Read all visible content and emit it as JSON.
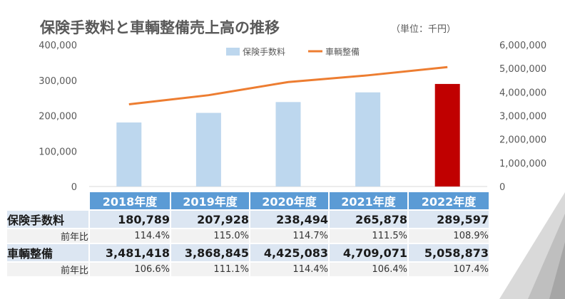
{
  "chart_data": {
    "type": "bar+line",
    "title": "保険手数料と車輌整備売上高の推移",
    "unit": "（単位：千円）",
    "categories": [
      "2018年度",
      "2019年度",
      "2020年度",
      "2021年度",
      "2022年度"
    ],
    "series": [
      {
        "name": "保険手数料",
        "type": "bar",
        "axis": "left",
        "values": [
          180789,
          207928,
          238494,
          265878,
          289597
        ],
        "color": "#bdd7ee",
        "highlight_last_color": "#c00000"
      },
      {
        "name": "車輌整備",
        "type": "line",
        "axis": "right",
        "values": [
          3481418,
          3868845,
          4425083,
          4709071,
          5058873
        ],
        "color": "#ed7d31"
      }
    ],
    "y_left": {
      "min": 0,
      "max": 400000,
      "ticks": [
        "0",
        "100,000",
        "200,000",
        "300,000",
        "400,000"
      ]
    },
    "y_right": {
      "min": 0,
      "max": 6000000,
      "ticks": [
        "0",
        "1,000,000",
        "2,000,000",
        "3,000,000",
        "4,000,000",
        "5,000,000",
        "6,000,000"
      ]
    },
    "legend_position": "top-center",
    "grid": false
  },
  "table": {
    "headers": [
      "2018年度",
      "2019年度",
      "2020年度",
      "2021年度",
      "2022年度"
    ],
    "rows": [
      {
        "label": "保険手数料",
        "values": [
          "180,789",
          "207,928",
          "238,494",
          "265,878",
          "289,597"
        ],
        "kind": "main"
      },
      {
        "label": "前年比",
        "values": [
          "114.4%",
          "115.0%",
          "114.7%",
          "111.5%",
          "108.9%"
        ],
        "kind": "sub"
      },
      {
        "label": "車輌整備",
        "values": [
          "3,481,418",
          "3,868,845",
          "4,425,083",
          "4,709,071",
          "5,058,873"
        ],
        "kind": "main"
      },
      {
        "label": "前年比",
        "values": [
          "106.6%",
          "111.1%",
          "114.4%",
          "106.4%",
          "107.4%"
        ],
        "kind": "sub"
      }
    ]
  },
  "colors": {
    "header_blue": "#5b9bd5",
    "accent_red": "#c00000",
    "line_orange": "#ed7d31",
    "bar_blue": "#bdd7ee"
  }
}
